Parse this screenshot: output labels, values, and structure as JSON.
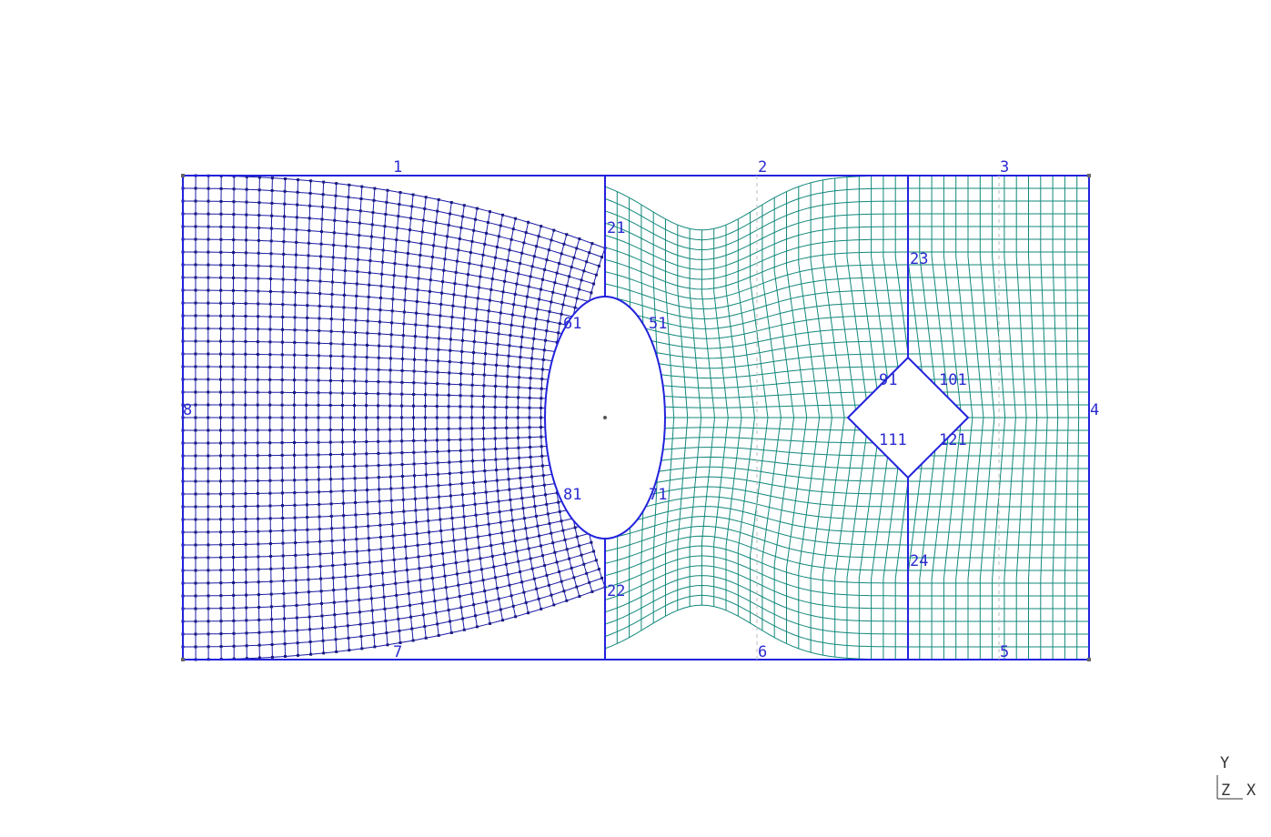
{
  "colors": {
    "background": "#ffffff",
    "boundary": "#2222dd",
    "mesh_left": "#1a1aa8",
    "mesh_right": "#12887a",
    "node": "#1a1a80",
    "label": "#2a2ad0"
  },
  "labels": {
    "edge_top_left": "1",
    "edge_top_mid": "2",
    "edge_top_right": "3",
    "edge_right": "4",
    "edge_bottom_right": "5",
    "edge_bottom_mid": "6",
    "edge_bottom_left": "7",
    "edge_left": "8",
    "split_top_1": "21",
    "split_bottom_1": "22",
    "split_top_2": "23",
    "split_bottom_2": "24",
    "ellipse_ur": "51",
    "ellipse_ul": "61",
    "ellipse_lr": "71",
    "ellipse_ll": "81",
    "diamond_ul": "91",
    "diamond_ur": "101",
    "diamond_ll": "111",
    "diamond_lr": "121"
  },
  "triad": {
    "y": "Y",
    "z": "Z",
    "x": "X"
  }
}
